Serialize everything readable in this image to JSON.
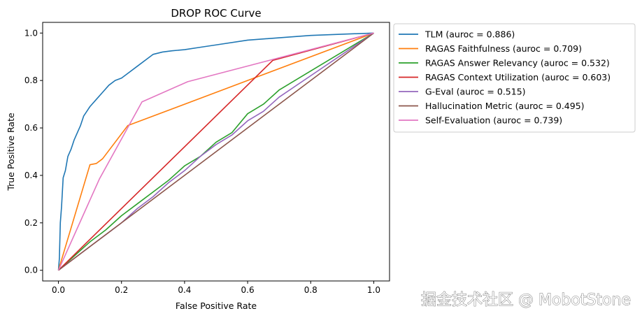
{
  "chart_data": {
    "type": "line",
    "title": "DROP ROC Curve",
    "xlabel": "False Positive Rate",
    "ylabel": "True Positive Rate",
    "xlim": [
      -0.05,
      1.05
    ],
    "ylim": [
      -0.045,
      1.045
    ],
    "xticks": [
      "0.0",
      "0.2",
      "0.4",
      "0.6",
      "0.8",
      "1.0"
    ],
    "yticks": [
      "0.0",
      "0.2",
      "0.4",
      "0.6",
      "0.8",
      "1.0"
    ],
    "grid": false,
    "legend_position": "outside-right-top",
    "series": [
      {
        "name": "TLM (auroc = 0.886)",
        "color": "#1f77b4",
        "x": [
          0,
          0.003,
          0.006,
          0.01,
          0.015,
          0.022,
          0.03,
          0.04,
          0.05,
          0.06,
          0.07,
          0.08,
          0.09,
          0.1,
          0.12,
          0.14,
          0.16,
          0.18,
          0.2,
          0.22,
          0.25,
          0.28,
          0.3,
          0.33,
          0.36,
          0.4,
          0.45,
          0.5,
          0.6,
          0.7,
          0.8,
          0.9,
          1.0
        ],
        "y": [
          0,
          0.05,
          0.2,
          0.27,
          0.39,
          0.42,
          0.48,
          0.51,
          0.55,
          0.58,
          0.61,
          0.65,
          0.67,
          0.69,
          0.72,
          0.75,
          0.78,
          0.8,
          0.81,
          0.83,
          0.86,
          0.89,
          0.91,
          0.92,
          0.925,
          0.93,
          0.94,
          0.95,
          0.97,
          0.98,
          0.99,
          0.995,
          1.0
        ]
      },
      {
        "name": "RAGAS Faithfulness (auroc = 0.709)",
        "color": "#ff7f0e",
        "x": [
          0,
          0.1,
          0.12,
          0.14,
          0.22,
          1.0
        ],
        "y": [
          0,
          0.445,
          0.45,
          0.47,
          0.61,
          1.0
        ]
      },
      {
        "name": "RAGAS Answer Relevancy (auroc = 0.532)",
        "color": "#2ca02c",
        "x": [
          0,
          0.05,
          0.1,
          0.15,
          0.2,
          0.25,
          0.3,
          0.35,
          0.4,
          0.45,
          0.5,
          0.55,
          0.6,
          0.65,
          0.7,
          0.8,
          0.9,
          1.0
        ],
        "y": [
          0,
          0.06,
          0.12,
          0.17,
          0.23,
          0.28,
          0.33,
          0.38,
          0.44,
          0.48,
          0.54,
          0.58,
          0.66,
          0.7,
          0.76,
          0.84,
          0.92,
          1.0
        ]
      },
      {
        "name": "RAGAS Context Utilization (auroc = 0.603)",
        "color": "#d62728",
        "x": [
          0,
          0.68,
          1.0
        ],
        "y": [
          0,
          0.885,
          1.0
        ]
      },
      {
        "name": "G-Eval (auroc = 0.515)",
        "color": "#9467bd",
        "x": [
          0,
          0.05,
          0.1,
          0.15,
          0.2,
          0.25,
          0.3,
          0.35,
          0.4,
          0.45,
          0.5,
          0.55,
          0.6,
          0.65,
          0.7,
          0.8,
          0.9,
          1.0
        ],
        "y": [
          0,
          0.05,
          0.1,
          0.15,
          0.2,
          0.26,
          0.31,
          0.37,
          0.42,
          0.48,
          0.53,
          0.57,
          0.63,
          0.67,
          0.73,
          0.82,
          0.91,
          1.0
        ]
      },
      {
        "name": "Hallucination Metric (auroc = 0.495)",
        "color": "#8c564b",
        "x": [
          0,
          1.0
        ],
        "y": [
          0,
          1.0
        ]
      },
      {
        "name": "Self-Evaluation (auroc = 0.739)",
        "color": "#e377c2",
        "x": [
          0,
          0.13,
          0.265,
          0.41,
          1.0
        ],
        "y": [
          0,
          0.385,
          0.71,
          0.795,
          1.0
        ]
      }
    ]
  },
  "watermark": "掘金技术社区 @ MobotStone"
}
